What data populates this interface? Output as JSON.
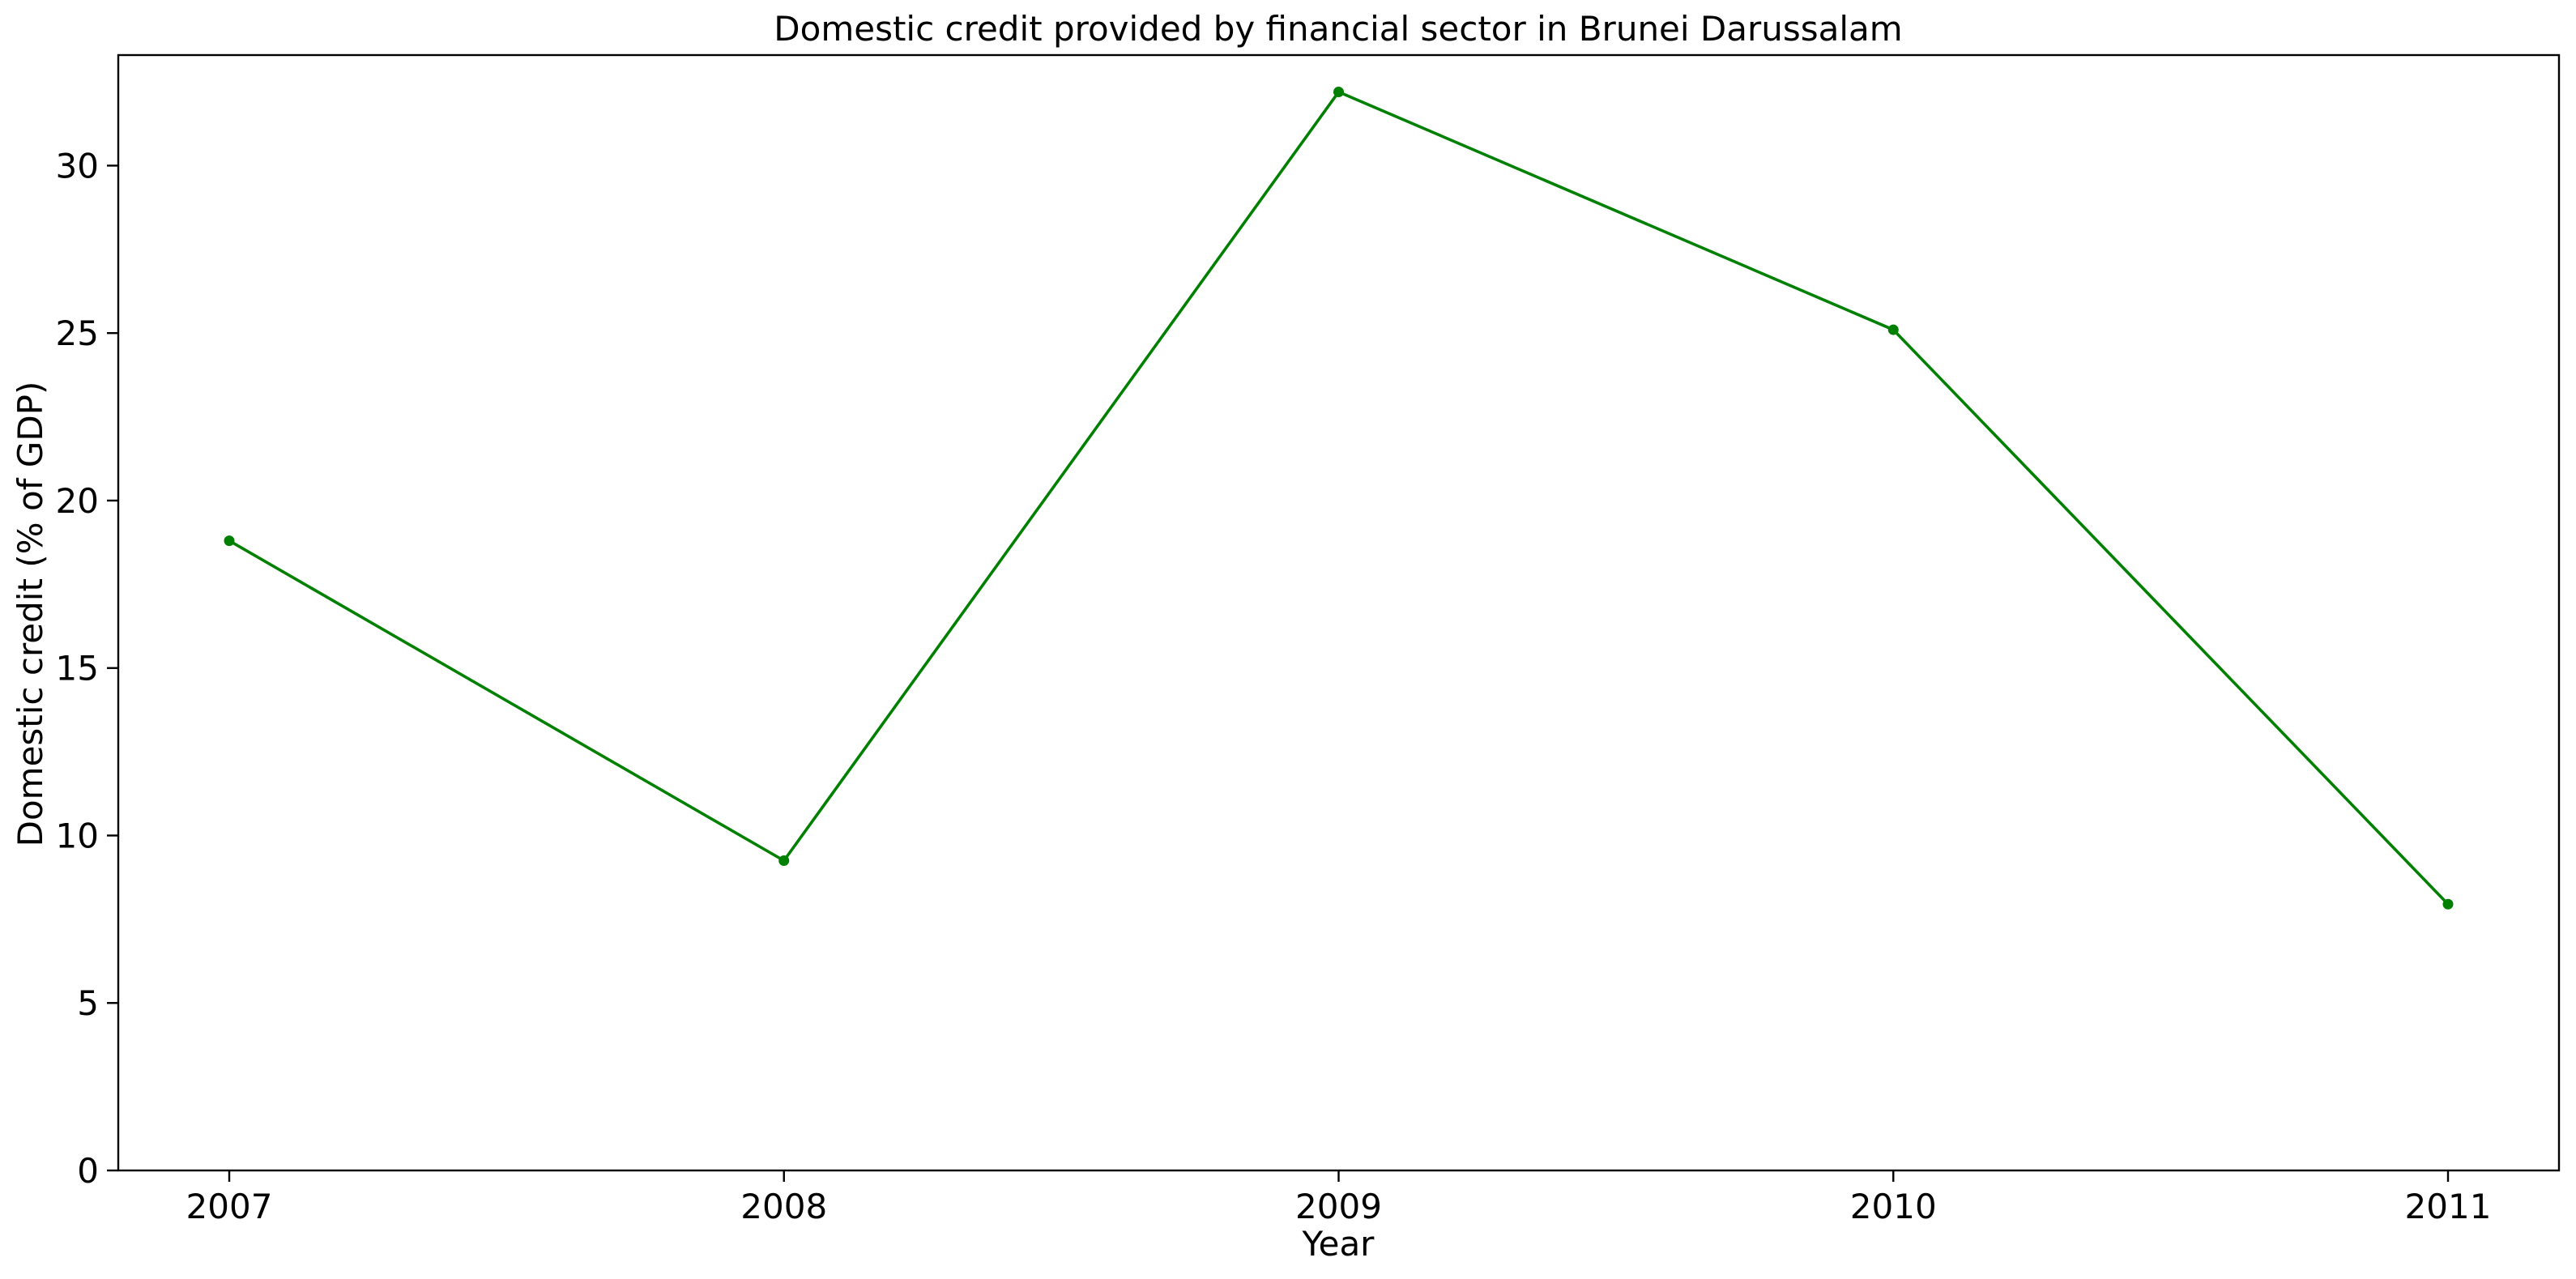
{
  "chart_data": {
    "type": "line",
    "title": "Domestic credit provided by financial sector in Brunei Darussalam",
    "xlabel": "Year",
    "ylabel": "Domestic credit (% of GDP)",
    "categories": [
      "2007",
      "2008",
      "2009",
      "2010",
      "2011"
    ],
    "series": [
      {
        "values": [
          18.8,
          9.25,
          32.2,
          25.1,
          7.95
        ],
        "color": "#008000",
        "marker": "circle"
      }
    ],
    "ylim": [
      0,
      33.3
    ],
    "yticks": [
      0,
      5,
      10,
      15,
      20,
      25,
      30
    ],
    "grid": false,
    "legend": "none"
  }
}
